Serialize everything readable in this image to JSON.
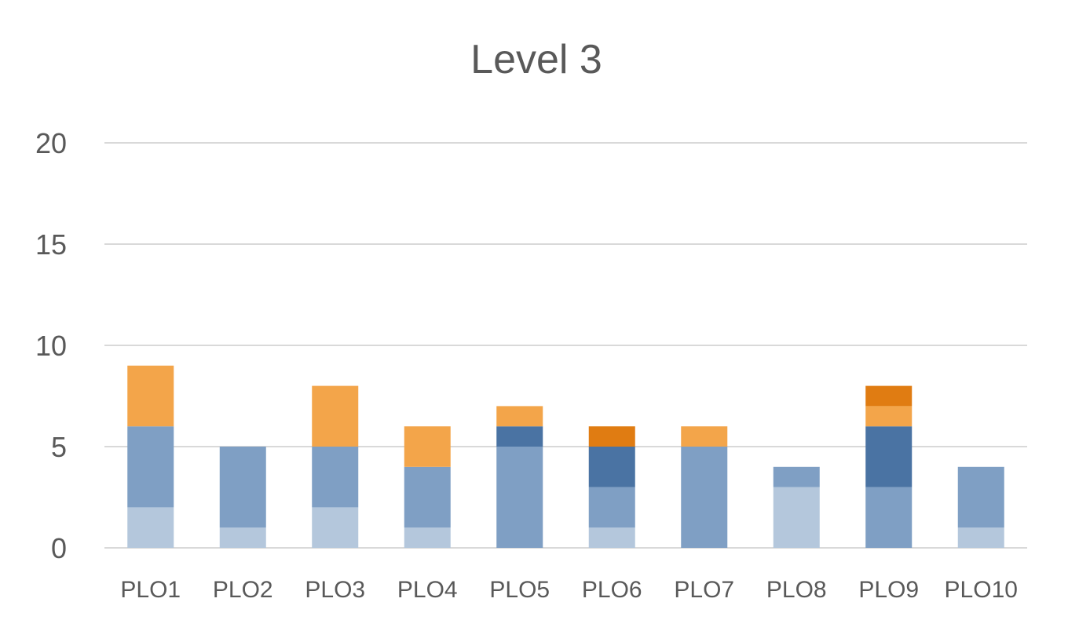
{
  "chart_data": {
    "type": "bar",
    "stacked": true,
    "title": "Level 3",
    "xlabel": "",
    "ylabel": "",
    "ylim": [
      0,
      20
    ],
    "yticks": [
      0,
      5,
      10,
      15,
      20
    ],
    "grid": true,
    "categories": [
      "PLO1",
      "PLO2",
      "PLO3",
      "PLO4",
      "PLO5",
      "PLO6",
      "PLO7",
      "PLO8",
      "PLO9",
      "PLO10"
    ],
    "series": [
      {
        "color": "#b4c7dc",
        "values": [
          2,
          1,
          2,
          1,
          0,
          1,
          0,
          3,
          0,
          1
        ]
      },
      {
        "color": "#7f9fc4",
        "values": [
          4,
          4,
          3,
          3,
          5,
          2,
          5,
          1,
          3,
          3
        ]
      },
      {
        "color": "#4a73a3",
        "values": [
          0,
          0,
          0,
          0,
          1,
          2,
          0,
          0,
          3,
          0
        ]
      },
      {
        "color": "#f3a54a",
        "values": [
          3,
          0,
          3,
          2,
          1,
          0,
          1,
          0,
          1,
          0
        ]
      },
      {
        "color": "#e07c12",
        "values": [
          0,
          0,
          0,
          0,
          0,
          1,
          0,
          0,
          1,
          0
        ]
      }
    ]
  }
}
